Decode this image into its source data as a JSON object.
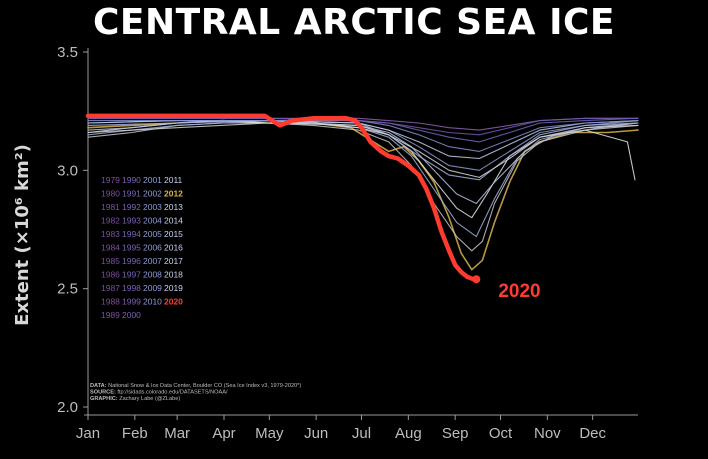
{
  "chart_data": {
    "type": "line",
    "title": "CENTRAL ARCTIC SEA ICE",
    "ylabel": "Extent (×10⁶ km²)",
    "ylim": [
      2.0,
      3.5
    ],
    "yticks": [
      "2.0",
      "2.5",
      "3.0",
      "3.5"
    ],
    "xlim": [
      1,
      365
    ],
    "xticks": [
      {
        "label": "Jan",
        "day": 1
      },
      {
        "label": "Feb",
        "day": 32
      },
      {
        "label": "Mar",
        "day": 60
      },
      {
        "label": "Apr",
        "day": 91
      },
      {
        "label": "May",
        "day": 121
      },
      {
        "label": "Jun",
        "day": 152
      },
      {
        "label": "Jul",
        "day": 182
      },
      {
        "label": "Aug",
        "day": 213
      },
      {
        "label": "Sep",
        "day": 244
      },
      {
        "label": "Oct",
        "day": 274
      },
      {
        "label": "Nov",
        "day": 305
      },
      {
        "label": "Dec",
        "day": 335
      }
    ],
    "grid": false,
    "legend_position": "left",
    "legend_years": [
      [
        "1979",
        "1990",
        "2001",
        "2011"
      ],
      [
        "1980",
        "1991",
        "2002",
        "2012"
      ],
      [
        "1981",
        "1992",
        "2003",
        "2013"
      ],
      [
        "1982",
        "1993",
        "2004",
        "2014"
      ],
      [
        "1983",
        "1994",
        "2005",
        "2015"
      ],
      [
        "1984",
        "1995",
        "2006",
        "2016"
      ],
      [
        "1985",
        "1996",
        "2007",
        "2017"
      ],
      [
        "1986",
        "1997",
        "2008",
        "2018"
      ],
      [
        "1987",
        "1998",
        "2009",
        "2019"
      ],
      [
        "1988",
        "1999",
        "2010",
        "2020"
      ],
      [
        "1989",
        "2000"
      ]
    ],
    "highlight": {
      "year": "2020",
      "label": "2020",
      "color": "#ff3b30"
    },
    "highlight_2012_color": "#d9b44a",
    "series": [
      {
        "name": "2020",
        "color": "#ff3b30",
        "x": [
          1,
          20,
          40,
          60,
          80,
          100,
          118,
          128,
          136,
          150,
          165,
          172,
          178,
          182,
          188,
          195,
          200,
          206,
          213,
          220,
          225,
          230,
          235,
          240,
          244,
          248,
          252,
          256,
          258
        ],
        "y": [
          3.23,
          3.23,
          3.23,
          3.23,
          3.23,
          3.23,
          3.23,
          3.19,
          3.21,
          3.22,
          3.22,
          3.22,
          3.21,
          3.18,
          3.12,
          3.08,
          3.06,
          3.05,
          3.02,
          2.98,
          2.92,
          2.84,
          2.74,
          2.66,
          2.6,
          2.57,
          2.55,
          2.54,
          2.54
        ]
      },
      {
        "name": "2012",
        "color": "#d9b44a",
        "x": [
          1,
          30,
          60,
          90,
          120,
          150,
          175,
          190,
          200,
          210,
          220,
          230,
          240,
          248,
          255,
          262,
          270,
          280,
          290,
          300,
          320,
          345,
          365
        ],
        "y": [
          3.18,
          3.19,
          3.2,
          3.21,
          3.2,
          3.2,
          3.18,
          3.12,
          3.08,
          3.1,
          3.04,
          2.95,
          2.8,
          2.65,
          2.58,
          2.62,
          2.78,
          2.95,
          3.08,
          3.12,
          3.16,
          3.16,
          3.17
        ]
      },
      {
        "name": "2016",
        "color": "#c8c8c8",
        "x": [
          1,
          30,
          60,
          90,
          120,
          150,
          180,
          200,
          215,
          230,
          245,
          255,
          262,
          270,
          285,
          300,
          330,
          365
        ],
        "y": [
          3.14,
          3.16,
          3.19,
          3.2,
          3.2,
          3.19,
          3.17,
          3.12,
          3.02,
          2.86,
          2.72,
          2.66,
          2.7,
          2.86,
          3.04,
          3.12,
          3.17,
          3.19
        ]
      },
      {
        "name": "2007",
        "color": "#9fb0d8",
        "x": [
          1,
          30,
          60,
          90,
          120,
          150,
          180,
          200,
          215,
          230,
          245,
          258,
          270,
          285,
          300,
          330,
          365
        ],
        "y": [
          3.15,
          3.17,
          3.19,
          3.2,
          3.21,
          3.2,
          3.18,
          3.14,
          3.06,
          2.92,
          2.78,
          2.72,
          2.88,
          3.05,
          3.13,
          3.18,
          3.2
        ]
      },
      {
        "name": "2019",
        "color": "#e6e6e6",
        "x": [
          1,
          30,
          60,
          90,
          120,
          150,
          180,
          200,
          215,
          230,
          245,
          255,
          265,
          280,
          300,
          330,
          358,
          363
        ],
        "y": [
          3.16,
          3.18,
          3.2,
          3.21,
          3.2,
          3.2,
          3.18,
          3.15,
          3.08,
          2.96,
          2.84,
          2.8,
          2.9,
          3.06,
          3.14,
          3.17,
          3.12,
          2.96
        ]
      },
      {
        "name": "2011",
        "color": "#b7c3e0",
        "x": [
          1,
          30,
          60,
          90,
          120,
          150,
          180,
          200,
          215,
          230,
          245,
          258,
          270,
          290,
          310,
          340,
          365
        ],
        "y": [
          3.17,
          3.18,
          3.2,
          3.21,
          3.21,
          3.2,
          3.19,
          3.16,
          3.1,
          3.0,
          2.9,
          2.86,
          2.95,
          3.08,
          3.15,
          3.18,
          3.2
        ]
      },
      {
        "name": "1985",
        "color": "#8e5fb3",
        "x": [
          1,
          60,
          120,
          180,
          200,
          220,
          240,
          260,
          280,
          300,
          330,
          365
        ],
        "y": [
          3.22,
          3.22,
          3.22,
          3.22,
          3.21,
          3.2,
          3.18,
          3.17,
          3.19,
          3.21,
          3.22,
          3.22
        ]
      },
      {
        "name": "1995",
        "color": "#7266b8",
        "x": [
          1,
          60,
          120,
          180,
          200,
          220,
          240,
          260,
          280,
          300,
          330,
          365
        ],
        "y": [
          3.22,
          3.22,
          3.22,
          3.21,
          3.2,
          3.17,
          3.14,
          3.12,
          3.16,
          3.2,
          3.21,
          3.22
        ]
      },
      {
        "name": "2005",
        "color": "#8c9bd6",
        "x": [
          1,
          60,
          120,
          180,
          200,
          220,
          240,
          260,
          280,
          300,
          330,
          365
        ],
        "y": [
          3.2,
          3.21,
          3.21,
          3.2,
          3.17,
          3.1,
          3.02,
          3.0,
          3.08,
          3.16,
          3.19,
          3.21
        ]
      },
      {
        "name": "2010",
        "color": "#a5b2e3",
        "x": [
          1,
          60,
          120,
          180,
          200,
          220,
          240,
          260,
          280,
          300,
          330,
          365
        ],
        "y": [
          3.19,
          3.2,
          3.21,
          3.2,
          3.15,
          3.06,
          2.98,
          2.96,
          3.06,
          3.15,
          3.19,
          3.2
        ]
      },
      {
        "name": "2014",
        "color": "#c3ccec",
        "x": [
          1,
          60,
          120,
          180,
          200,
          220,
          240,
          260,
          280,
          300,
          330,
          365
        ],
        "y": [
          3.2,
          3.21,
          3.21,
          3.2,
          3.17,
          3.12,
          3.06,
          3.05,
          3.11,
          3.17,
          3.2,
          3.21
        ]
      },
      {
        "name": "2018",
        "color": "#d3d3d3",
        "x": [
          1,
          60,
          120,
          180,
          200,
          220,
          240,
          260,
          280,
          300,
          330,
          365
        ],
        "y": [
          3.16,
          3.18,
          3.2,
          3.19,
          3.15,
          3.08,
          3.0,
          2.97,
          3.05,
          3.14,
          3.18,
          3.19
        ]
      },
      {
        "name": "2003",
        "color": "#7e8fcf",
        "x": [
          1,
          60,
          120,
          180,
          200,
          220,
          240,
          260,
          280,
          300,
          330,
          365
        ],
        "y": [
          3.21,
          3.21,
          3.21,
          3.21,
          3.19,
          3.15,
          3.1,
          3.08,
          3.13,
          3.18,
          3.2,
          3.21
        ]
      },
      {
        "name": "1990",
        "color": "#6f5bb0",
        "x": [
          1,
          60,
          120,
          180,
          200,
          220,
          240,
          260,
          280,
          300,
          330,
          365
        ],
        "y": [
          3.22,
          3.22,
          3.22,
          3.21,
          3.2,
          3.18,
          3.16,
          3.15,
          3.18,
          3.21,
          3.22,
          3.22
        ]
      }
    ],
    "credits": [
      {
        "label": "DATA:",
        "text": "National Snow & Ice Data Center, Boulder CO (Sea Ice Index v3, 1979-2020*)"
      },
      {
        "label": "SOURCE:",
        "text": "ftp://sidads.colorado.edu/DATASETS/NOAA/"
      },
      {
        "label": "GRAPHIC:",
        "text": "Zachary Labe (@ZLabe)"
      }
    ]
  },
  "legend_colors": {
    "col0": "#7a4f9e",
    "col1": "#7a62b4",
    "col2": "#8e9ed9",
    "col3": "#c9d2ee",
    "y2012": "#d9b44a",
    "y2020": "#ff3b30"
  }
}
